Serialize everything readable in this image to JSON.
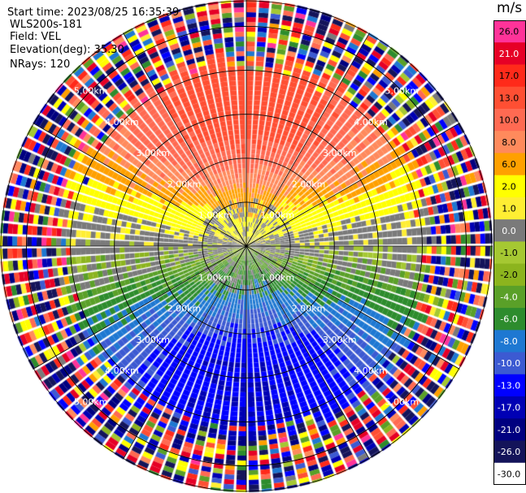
{
  "header": {
    "start_time": "Start time: 2023/08/25 16:35:39",
    "site": "WLS200s-181",
    "field": "Field: VEL",
    "elevation": "Elevation(deg): 35.30",
    "nrays": "NRays: 120"
  },
  "colorbar": {
    "unit": "m/s",
    "bins": [
      {
        "label": "26.0",
        "color": "#ff3399"
      },
      {
        "label": "21.0",
        "color": "#e60026"
      },
      {
        "label": "17.0",
        "color": "#ff2a1a"
      },
      {
        "label": "13.0",
        "color": "#ff4f33"
      },
      {
        "label": "10.0",
        "color": "#ff6a52"
      },
      {
        "label": "8.0",
        "color": "#ff8a5c"
      },
      {
        "label": "6.0",
        "color": "#ffa000"
      },
      {
        "label": "2.0",
        "color": "#ffff00"
      },
      {
        "label": "1.0",
        "color": "#ffee33"
      },
      {
        "label": "0.0",
        "color": "#7a7a7a"
      },
      {
        "label": "-1.0",
        "color": "#a5c832"
      },
      {
        "label": "-2.0",
        "color": "#8cb41e"
      },
      {
        "label": "-4.0",
        "color": "#5aa028"
      },
      {
        "label": "-6.0",
        "color": "#2d8c2d"
      },
      {
        "label": "-8.0",
        "color": "#1e78d2"
      },
      {
        "label": "-10.0",
        "color": "#3c5ad2"
      },
      {
        "label": "-13.0",
        "color": "#0000ff"
      },
      {
        "label": "-17.0",
        "color": "#0000b4"
      },
      {
        "label": "-21.0",
        "color": "#000080"
      },
      {
        "label": "-26.0",
        "color": "#14145a"
      },
      {
        "label": "-30.0",
        "color": "#ffffff"
      }
    ]
  },
  "chart_data": {
    "type": "heatmap",
    "projection": "polar",
    "field": "VEL",
    "nrays": 120,
    "elevation_deg": 35.3,
    "range_ring_labels": [
      "1.00km",
      "2.00km",
      "3.00km",
      "4.00km",
      "5.00km"
    ],
    "range_rings_km": [
      1,
      2,
      3,
      4,
      5
    ],
    "max_range_km": 5.6,
    "azimuth_lines_deg": [
      0,
      30,
      60,
      90,
      120,
      150,
      180,
      210,
      240,
      270,
      300,
      330
    ],
    "velocity_pattern": {
      "description": "positive radial velocity to the north, negative to the south; noisy beyond ~4 km",
      "north_max_ms": 15.0,
      "south_min_ms": -13.0,
      "noise_start_km": 4.2
    }
  }
}
